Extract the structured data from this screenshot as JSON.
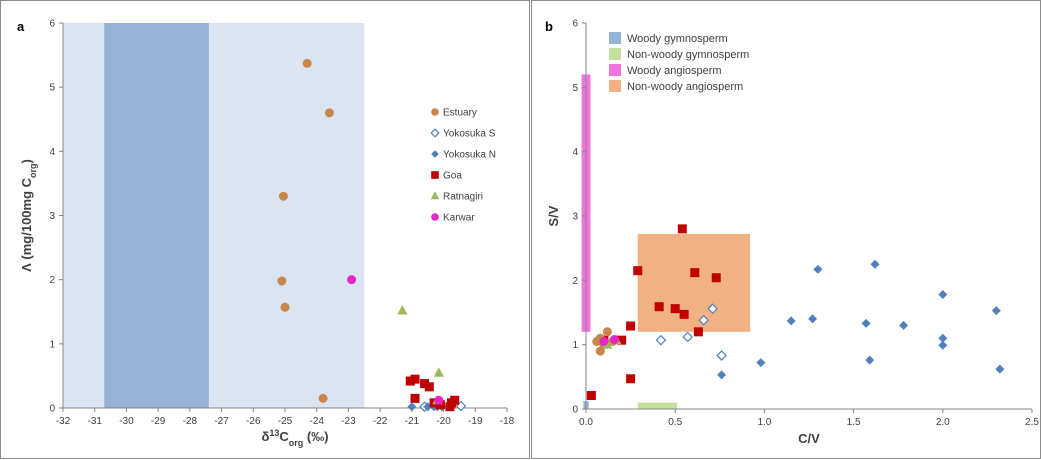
{
  "chart_data": [
    {
      "type": "scatter",
      "panel_label": "a",
      "xlabel": "δ13Corg (‰)",
      "ylabel": "Λ (mg/100mg Corg)",
      "xlim": [
        -32,
        -18
      ],
      "ylim": [
        0,
        6
      ],
      "xticks": [
        "-32",
        "-31",
        "-30",
        "-29",
        "-28",
        "-27",
        "-26",
        "-25",
        "-24",
        "-23",
        "-22",
        "-21",
        "-20",
        "-19",
        "-18"
      ],
      "yticks": [
        "0",
        "1",
        "2",
        "3",
        "4",
        "5",
        "6"
      ],
      "legend_position": "right",
      "ranges": [
        {
          "x": [
            -32,
            -22.5
          ],
          "color": "#dbe5f2"
        },
        {
          "x": [
            -30.7,
            -27.4
          ],
          "color": "#95b3d7"
        }
      ],
      "series": [
        {
          "name": "Estuary",
          "marker": "circle",
          "color": "#c8864b",
          "points": [
            [
              -24.3,
              5.37
            ],
            [
              -23.6,
              4.6
            ],
            [
              -25.05,
              3.3
            ],
            [
              -25.1,
              1.98
            ],
            [
              -25.0,
              1.57
            ],
            [
              -23.8,
              0.15
            ]
          ]
        },
        {
          "name": "Yokosuka S",
          "marker": "diamond-open",
          "color": "#4f81bd",
          "points": [
            [
              -20.6,
              0.02
            ],
            [
              -20.2,
              0.03
            ],
            [
              -19.45,
              0.03
            ]
          ]
        },
        {
          "name": "Yokosuka N",
          "marker": "diamond",
          "color": "#4f81bd",
          "points": [
            [
              -21.0,
              0.02
            ],
            [
              -20.5,
              0.02
            ],
            [
              -20.3,
              0.02
            ],
            [
              -20.05,
              0.02
            ],
            [
              -20.2,
              0.05
            ]
          ]
        },
        {
          "name": "Goa",
          "marker": "square",
          "color": "#c00000",
          "points": [
            [
              -21.05,
              0.42
            ],
            [
              -20.9,
              0.45
            ],
            [
              -20.6,
              0.38
            ],
            [
              -20.45,
              0.33
            ],
            [
              -20.9,
              0.15
            ],
            [
              -20.3,
              0.08
            ],
            [
              -20.1,
              0.05
            ],
            [
              -19.75,
              0.08
            ],
            [
              -19.65,
              0.12
            ],
            [
              -19.8,
              0.02
            ]
          ]
        },
        {
          "name": "Ratnagiri",
          "marker": "triangle",
          "color": "#9bbb59",
          "points": [
            [
              -21.3,
              1.52
            ],
            [
              -20.15,
              0.55
            ],
            [
              -20.2,
              0.12
            ]
          ]
        },
        {
          "name": "Karwar",
          "marker": "circle",
          "color": "#e526c4",
          "points": [
            [
              -22.9,
              2.0
            ],
            [
              -20.15,
              0.12
            ]
          ]
        }
      ]
    },
    {
      "type": "scatter",
      "panel_label": "b",
      "xlabel": "C/V",
      "ylabel": "S/V",
      "xlim": [
        0,
        2.5
      ],
      "ylim": [
        0,
        6
      ],
      "xticks": [
        "0.0",
        "0.5",
        "1.0",
        "1.5",
        "2.0",
        "2.5"
      ],
      "yticks": [
        "0",
        "1",
        "2",
        "3",
        "4",
        "5",
        "6"
      ],
      "legend_position": "top",
      "legend": [
        {
          "label": "Woody gymnosperm",
          "color": "#95b3d7"
        },
        {
          "label": "Non-woody gymnosperm",
          "color": "#c3e19c"
        },
        {
          "label": "Woody angiosperm",
          "color": "#f075e0"
        },
        {
          "label": "Non-woody angiosperm",
          "color": "#f2b183"
        }
      ],
      "regions": [
        {
          "x": [
            -0.015,
            0.015
          ],
          "y": [
            0,
            0.12
          ],
          "color": "#95b3d7"
        },
        {
          "x": [
            0.29,
            0.51
          ],
          "y": [
            0,
            0.1
          ],
          "color": "#c3e19c"
        },
        {
          "x": [
            -0.025,
            0.025
          ],
          "y": [
            1.2,
            5.2
          ],
          "color": "#f075e0"
        },
        {
          "x": [
            0.29,
            0.92
          ],
          "y": [
            1.2,
            2.72
          ],
          "color": "#f2b183"
        }
      ],
      "series": [
        {
          "name": "Yokosuka N",
          "marker": "diamond",
          "color": "#4f81bd",
          "points": [
            [
              1.62,
              2.25
            ],
            [
              1.3,
              2.17
            ],
            [
              2.0,
              1.78
            ],
            [
              2.3,
              1.53
            ],
            [
              1.15,
              1.37
            ],
            [
              1.27,
              1.4
            ],
            [
              1.57,
              1.33
            ],
            [
              1.78,
              1.3
            ],
            [
              2.0,
              1.1
            ],
            [
              2.0,
              0.99
            ],
            [
              0.98,
              0.72
            ],
            [
              1.59,
              0.76
            ],
            [
              0.76,
              0.53
            ],
            [
              2.32,
              0.62
            ]
          ]
        },
        {
          "name": "Yokosuka S",
          "marker": "diamond-open",
          "color": "#4f81bd",
          "points": [
            [
              0.71,
              1.56
            ],
            [
              0.66,
              1.38
            ],
            [
              0.57,
              1.12
            ],
            [
              0.42,
              1.07
            ],
            [
              0.76,
              0.83
            ]
          ]
        },
        {
          "name": "Goa",
          "marker": "square",
          "color": "#c00000",
          "points": [
            [
              0.54,
              2.8
            ],
            [
              0.29,
              2.15
            ],
            [
              0.61,
              2.12
            ],
            [
              0.73,
              2.04
            ],
            [
              0.41,
              1.59
            ],
            [
              0.5,
              1.56
            ],
            [
              0.55,
              1.47
            ],
            [
              0.25,
              1.29
            ],
            [
              0.63,
              1.2
            ],
            [
              0.1,
              1.07
            ],
            [
              0.2,
              1.07
            ],
            [
              0.25,
              0.47
            ],
            [
              0.03,
              0.21
            ]
          ]
        },
        {
          "name": "Estuary",
          "marker": "circle",
          "color": "#c8864b",
          "points": [
            [
              0.12,
              1.2
            ],
            [
              0.08,
              1.1
            ],
            [
              0.06,
              1.05
            ],
            [
              0.1,
              1.0
            ],
            [
              0.08,
              0.9
            ],
            [
              0.15,
              1.05
            ]
          ]
        },
        {
          "name": "Ratnagiri",
          "marker": "triangle",
          "color": "#9bbb59",
          "points": [
            [
              0.12,
              1.0
            ],
            [
              0.17,
              1.07
            ]
          ]
        },
        {
          "name": "Karwar",
          "marker": "circle",
          "color": "#e526c4",
          "points": [
            [
              0.1,
              1.05
            ],
            [
              0.16,
              1.08
            ]
          ]
        }
      ]
    }
  ]
}
